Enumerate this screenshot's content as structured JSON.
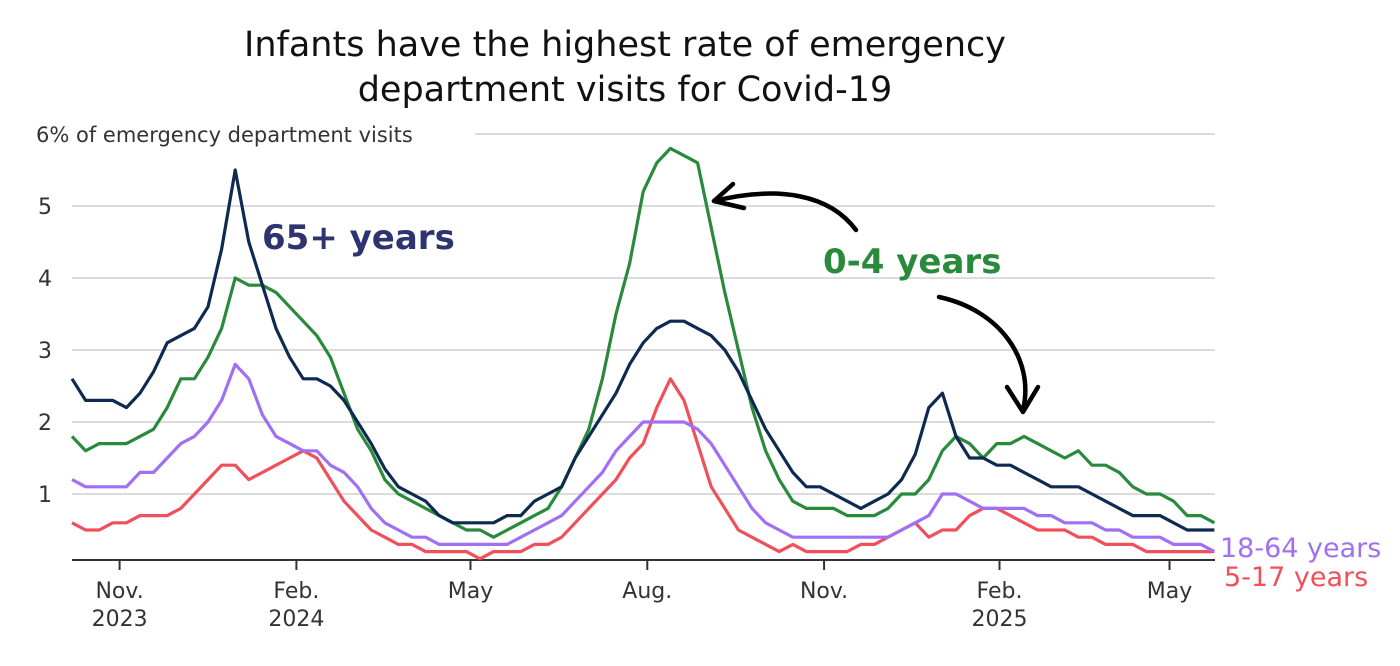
{
  "chart_data": {
    "type": "line",
    "title": "Infants have the highest rate of emergency department visits for Covid-19",
    "title_lines": [
      "Infants have the highest rate of emergency",
      "department visits for Covid-19"
    ],
    "ylabel": "6% of emergency department visits",
    "ylim": [
      0,
      6
    ],
    "yticks": [
      "1",
      "2",
      "3",
      "4",
      "5"
    ],
    "xlabel": "",
    "x_unit": "weeks (weekly data, Oct 2023 to Jun 2025)",
    "xticks": [
      {
        "line1": "Nov.",
        "line2": "2023",
        "week": 3.5
      },
      {
        "line1": "Feb.",
        "line2": "2024",
        "week": 16.5
      },
      {
        "line1": "May",
        "line2": "",
        "week": 29.3
      },
      {
        "line1": "Aug.",
        "line2": "",
        "week": 42.3
      },
      {
        "line1": "Nov.",
        "line2": "",
        "week": 55.3
      },
      {
        "line1": "Feb.",
        "line2": "2025",
        "week": 68.2
      },
      {
        "line1": "May",
        "line2": "",
        "week": 80.7
      }
    ],
    "grid": true,
    "series": [
      {
        "name": "65+ years",
        "color": "#0e2a50",
        "values": [
          2.6,
          2.3,
          2.3,
          2.3,
          2.2,
          2.4,
          2.7,
          3.1,
          3.2,
          3.3,
          3.6,
          4.4,
          5.5,
          4.5,
          3.9,
          3.3,
          2.9,
          2.6,
          2.6,
          2.5,
          2.3,
          2.0,
          1.7,
          1.35,
          1.1,
          1.0,
          0.9,
          0.7,
          0.6,
          0.6,
          0.6,
          0.6,
          0.7,
          0.7,
          0.9,
          1.0,
          1.1,
          1.5,
          1.8,
          2.1,
          2.4,
          2.8,
          3.1,
          3.3,
          3.4,
          3.4,
          3.3,
          3.2,
          3.0,
          2.7,
          2.3,
          1.9,
          1.6,
          1.3,
          1.1,
          1.1,
          1.0,
          0.9,
          0.8,
          0.9,
          1.0,
          1.2,
          1.55,
          2.2,
          2.4,
          1.8,
          1.5,
          1.5,
          1.4,
          1.4,
          1.3,
          1.2,
          1.1,
          1.1,
          1.1,
          1.0,
          0.9,
          0.8,
          0.7,
          0.7,
          0.7,
          0.6,
          0.5,
          0.5,
          0.5
        ]
      },
      {
        "name": "0-4 years",
        "color": "#2a8a3c",
        "values": [
          1.8,
          1.6,
          1.7,
          1.7,
          1.7,
          1.8,
          1.9,
          2.2,
          2.6,
          2.6,
          2.9,
          3.3,
          4.0,
          3.9,
          3.9,
          3.8,
          3.6,
          3.4,
          3.2,
          2.9,
          2.4,
          1.9,
          1.6,
          1.2,
          1.0,
          0.9,
          0.8,
          0.7,
          0.6,
          0.5,
          0.5,
          0.4,
          0.5,
          0.6,
          0.7,
          0.8,
          1.1,
          1.5,
          1.9,
          2.6,
          3.5,
          4.2,
          5.2,
          5.6,
          5.8,
          5.7,
          5.6,
          4.7,
          3.8,
          3.0,
          2.2,
          1.6,
          1.2,
          0.9,
          0.8,
          0.8,
          0.8,
          0.7,
          0.7,
          0.7,
          0.8,
          1.0,
          1.0,
          1.2,
          1.6,
          1.8,
          1.7,
          1.5,
          1.7,
          1.7,
          1.8,
          1.7,
          1.6,
          1.5,
          1.6,
          1.4,
          1.4,
          1.3,
          1.1,
          1.0,
          1.0,
          0.9,
          0.7,
          0.7,
          0.6
        ]
      },
      {
        "name": "18-64 years",
        "color": "#a070f4",
        "values": [
          1.2,
          1.1,
          1.1,
          1.1,
          1.1,
          1.3,
          1.3,
          1.5,
          1.7,
          1.8,
          2.0,
          2.3,
          2.8,
          2.6,
          2.1,
          1.8,
          1.7,
          1.6,
          1.6,
          1.4,
          1.3,
          1.1,
          0.8,
          0.6,
          0.5,
          0.4,
          0.4,
          0.3,
          0.3,
          0.3,
          0.3,
          0.3,
          0.3,
          0.4,
          0.5,
          0.6,
          0.7,
          0.9,
          1.1,
          1.3,
          1.6,
          1.8,
          2.0,
          2.0,
          2.0,
          2.0,
          1.9,
          1.7,
          1.4,
          1.1,
          0.8,
          0.6,
          0.5,
          0.4,
          0.4,
          0.4,
          0.4,
          0.4,
          0.4,
          0.4,
          0.4,
          0.5,
          0.6,
          0.7,
          1.0,
          1.0,
          0.9,
          0.8,
          0.8,
          0.8,
          0.8,
          0.7,
          0.7,
          0.6,
          0.6,
          0.6,
          0.5,
          0.5,
          0.4,
          0.4,
          0.4,
          0.3,
          0.3,
          0.3,
          0.2
        ]
      },
      {
        "name": "5-17 years",
        "color": "#f0505a",
        "values": [
          0.6,
          0.5,
          0.5,
          0.6,
          0.6,
          0.7,
          0.7,
          0.7,
          0.8,
          1.0,
          1.2,
          1.4,
          1.4,
          1.2,
          1.3,
          1.4,
          1.5,
          1.6,
          1.5,
          1.2,
          0.9,
          0.7,
          0.5,
          0.4,
          0.3,
          0.3,
          0.2,
          0.2,
          0.2,
          0.2,
          0.1,
          0.2,
          0.2,
          0.2,
          0.3,
          0.3,
          0.4,
          0.6,
          0.8,
          1.0,
          1.2,
          1.5,
          1.7,
          2.2,
          2.6,
          2.3,
          1.7,
          1.1,
          0.8,
          0.5,
          0.4,
          0.3,
          0.2,
          0.3,
          0.2,
          0.2,
          0.2,
          0.2,
          0.3,
          0.3,
          0.4,
          0.5,
          0.6,
          0.4,
          0.5,
          0.5,
          0.7,
          0.8,
          0.8,
          0.7,
          0.6,
          0.5,
          0.5,
          0.5,
          0.4,
          0.4,
          0.3,
          0.3,
          0.3,
          0.2,
          0.2,
          0.2,
          0.2,
          0.2,
          0.2
        ]
      }
    ],
    "annotations": [
      {
        "text": "65+ years",
        "series": "65+ years",
        "color": "#2e3470"
      },
      {
        "text": "0-4 years",
        "series": "0-4 years",
        "color": "#2a8a3c"
      },
      {
        "text": "18-64 years",
        "series": "18-64 years",
        "color": "#a070f4"
      },
      {
        "text": "5-17 years",
        "series": "5-17 years",
        "color": "#f0505a"
      }
    ]
  }
}
